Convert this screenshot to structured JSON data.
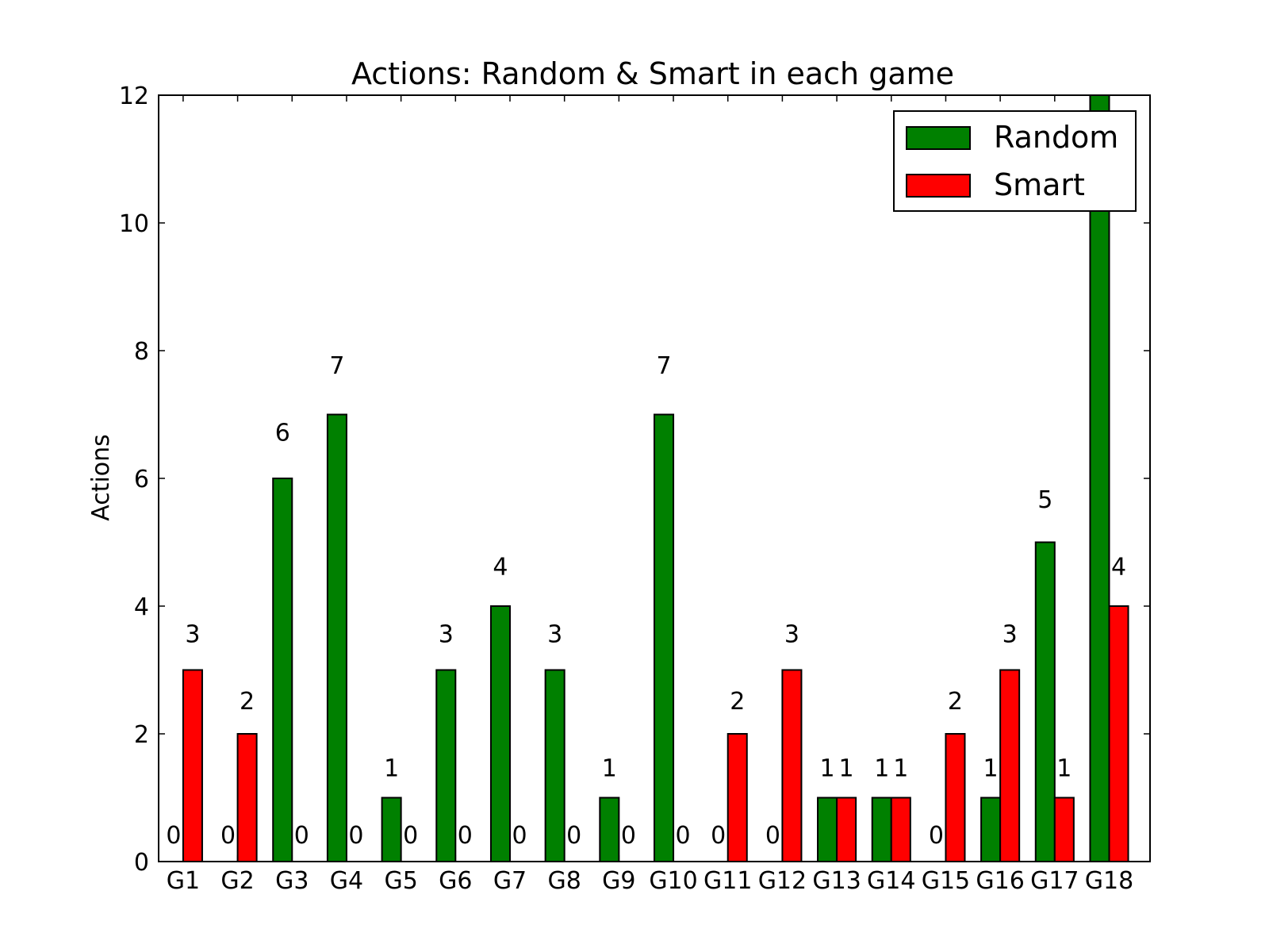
{
  "chart_data": {
    "type": "bar",
    "title": "Actions: Random & Smart in each game",
    "xlabel": "",
    "ylabel": "Actions",
    "ylim": [
      0,
      12
    ],
    "yticks": [
      "0",
      "2",
      "4",
      "6",
      "8",
      "10",
      "12"
    ],
    "categories": [
      "G1",
      "G2",
      "G3",
      "G4",
      "G5",
      "G6",
      "G7",
      "G8",
      "G9",
      "G10",
      "G11",
      "G12",
      "G13",
      "G14",
      "G15",
      "G16",
      "G17",
      "G18"
    ],
    "series": [
      {
        "name": "Random",
        "color": "#008000",
        "values": [
          0,
          0,
          6,
          7,
          1,
          3,
          4,
          3,
          1,
          7,
          0,
          0,
          1,
          1,
          0,
          1,
          5,
          12
        ]
      },
      {
        "name": "Smart",
        "color": "#ff0000",
        "values": [
          3,
          2,
          0,
          0,
          0,
          0,
          0,
          0,
          0,
          0,
          2,
          3,
          1,
          1,
          2,
          3,
          1,
          4
        ]
      }
    ],
    "data_labels": {
      "Random": [
        "0",
        "0",
        "6",
        "7",
        "1",
        "3",
        "4",
        "3",
        "1",
        "7",
        "0",
        "0",
        "1",
        "1",
        "0",
        "1",
        "5",
        ""
      ],
      "Smart": [
        "3",
        "2",
        "0",
        "0",
        "0",
        "0",
        "0",
        "0",
        "0",
        "0",
        "2",
        "3",
        "1",
        "1",
        "2",
        "3",
        "1",
        "4"
      ]
    },
    "legend": {
      "position": "top-right"
    },
    "grid": false
  }
}
